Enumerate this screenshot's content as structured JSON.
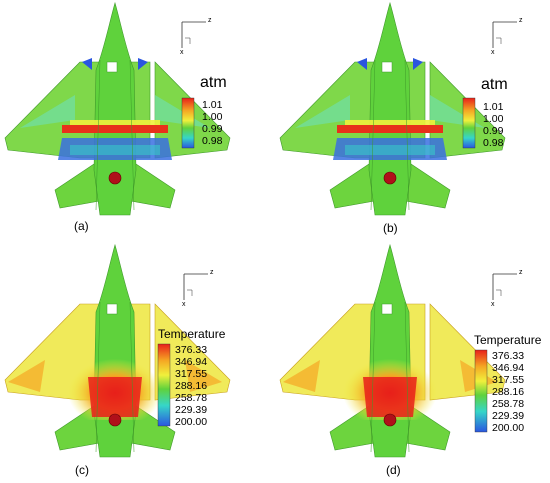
{
  "panels": [
    {
      "caption": "(a)",
      "variable": "atm",
      "ticks": [
        "1.01",
        "1.00",
        "0.99",
        "0.98"
      ],
      "colormap": "pressure"
    },
    {
      "caption": "(b)",
      "variable": "atm",
      "ticks": [
        "1.01",
        "1.00",
        "0.99",
        "0.98"
      ],
      "colormap": "pressure"
    },
    {
      "caption": "(c)",
      "variable": "Temperature",
      "ticks": [
        "376.33",
        "346.94",
        "317.55",
        "288.16",
        "258.78",
        "229.39",
        "200.00"
      ],
      "colormap": "temperature"
    },
    {
      "caption": "(d)",
      "variable": "Temperature",
      "ticks": [
        "376.33",
        "346.94",
        "317.55",
        "288.16",
        "258.78",
        "229.39",
        "200.00"
      ],
      "colormap": "temperature"
    }
  ],
  "axes_labels": {
    "horizontal": "z",
    "vertical": "x"
  },
  "colors": {
    "red": "#e8201a",
    "orange": "#f5a623",
    "yellow": "#f0f03c",
    "green": "#5fd23c",
    "cyan": "#36d6c8",
    "blue": "#2a56e0",
    "dark_red": "#b0101a"
  }
}
